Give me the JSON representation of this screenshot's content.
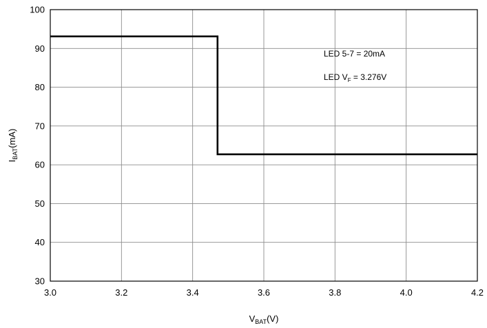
{
  "chart_data": {
    "type": "line",
    "x_axis": {
      "label_main": "V",
      "label_sub": "BAT",
      "label_unit": "(V)",
      "range": [
        3.0,
        4.2
      ],
      "ticks": [
        3.0,
        3.2,
        3.4,
        3.6,
        3.8,
        4.0,
        4.2
      ],
      "tick_labels": [
        "3.0",
        "3.2",
        "3.4",
        "3.6",
        "3.8",
        "4.0",
        "4.2"
      ]
    },
    "y_axis": {
      "label_main": "I",
      "label_sub": "BAT",
      "label_unit": "(mA)",
      "range": [
        30,
        100
      ],
      "ticks": [
        30,
        40,
        50,
        60,
        70,
        80,
        90,
        100
      ],
      "tick_labels": [
        "30",
        "40",
        "50",
        "60",
        "70",
        "80",
        "90",
        "100"
      ]
    },
    "grid": true,
    "series": [
      {
        "x": [
          3.0,
          3.47,
          3.47,
          4.2
        ],
        "y": [
          93.1,
          93.1,
          62.7,
          62.7
        ]
      }
    ],
    "annotations": [
      {
        "main": "LED 5-7 = 20mA",
        "sub": "",
        "tail": ""
      },
      {
        "main": "LED V",
        "sub": "F",
        "tail": " = 3.276V"
      }
    ],
    "colors": {
      "line": "#000000",
      "grid": "#8c8c8c",
      "frame": "#000000",
      "background": "#ffffff"
    }
  }
}
